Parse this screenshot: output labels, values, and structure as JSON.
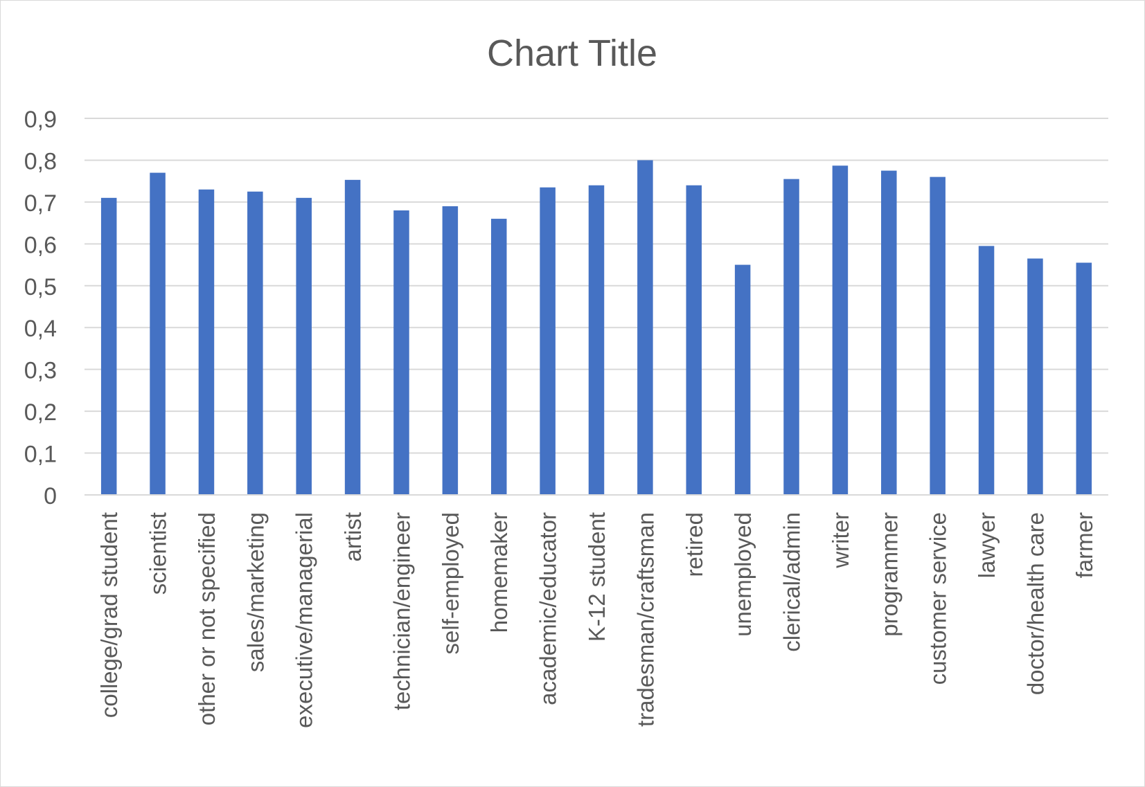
{
  "chart_data": {
    "type": "bar",
    "title": "Chart Title",
    "xlabel": "",
    "ylabel": "",
    "ylim": [
      0,
      0.9
    ],
    "yticks": [
      "0",
      "0,1",
      "0,2",
      "0,3",
      "0,4",
      "0,5",
      "0,6",
      "0,7",
      "0,8",
      "0,9"
    ],
    "ytick_values": [
      0,
      0.1,
      0.2,
      0.3,
      0.4,
      0.5,
      0.6,
      0.7,
      0.8,
      0.9
    ],
    "grid": true,
    "legend": "none",
    "bar_color": "#4472C4",
    "categories": [
      "college/grad student",
      "scientist",
      "other or not specified",
      "sales/marketing",
      "executive/managerial",
      "artist",
      "technician/engineer",
      "self-employed",
      "homemaker",
      "academic/educator",
      "K-12 student",
      "tradesman/craftsman",
      "retired",
      "unemployed",
      "clerical/admin",
      "writer",
      "programmer",
      "customer service",
      "lawyer",
      "doctor/health care",
      "farmer"
    ],
    "values": [
      0.71,
      0.77,
      0.73,
      0.725,
      0.71,
      0.753,
      0.68,
      0.69,
      0.66,
      0.735,
      0.74,
      0.8,
      0.74,
      0.55,
      0.755,
      0.787,
      0.775,
      0.76,
      0.595,
      0.565,
      0.555
    ]
  }
}
